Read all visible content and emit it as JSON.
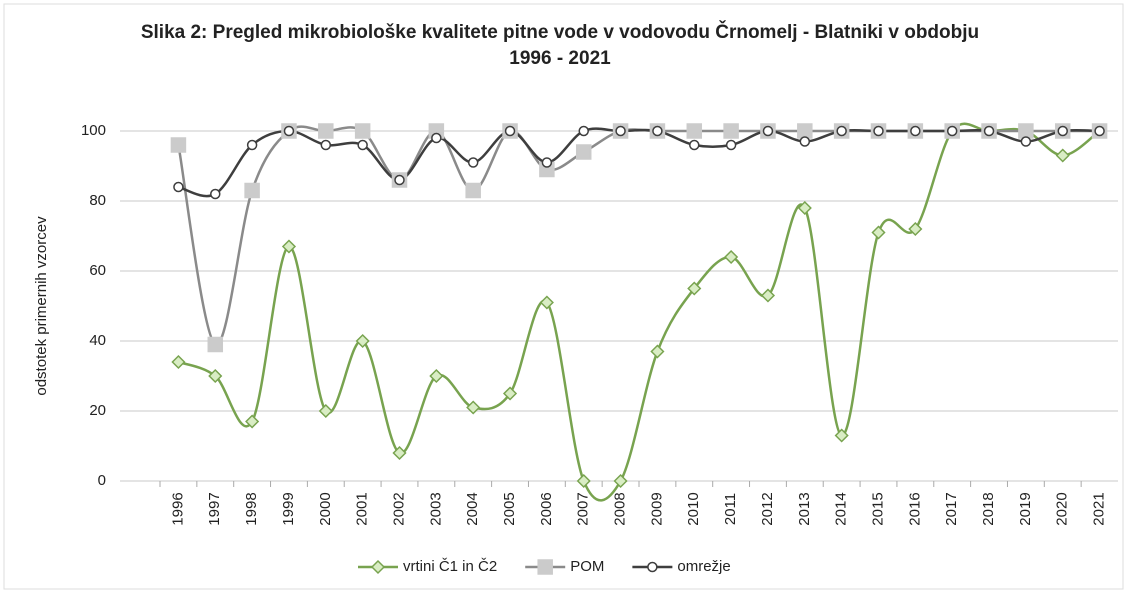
{
  "chart_data": {
    "type": "line",
    "title": "Slika 2: Pregled mikrobiološke kvalitete pitne vode v vodovodu Črnomelj - Blatniki v obdobju 1996 - 2021",
    "y_label": "odstotek primernih vzorcev",
    "categories": [
      "1996",
      "1997",
      "1998",
      "1999",
      "2000",
      "2001",
      "2002",
      "2003",
      "2004",
      "2005",
      "2006",
      "2007",
      "2008",
      "2009",
      "2010",
      "2011",
      "2012",
      "2013",
      "2014",
      "2015",
      "2016",
      "2017",
      "2018",
      "2019",
      "2020",
      "2021"
    ],
    "series": [
      {
        "name": "vrtini Č1 in Č2",
        "color": "#78a34f",
        "marker": "diamond",
        "marker_fill": "#d9edc4",
        "values": [
          34,
          30,
          17,
          67,
          20,
          40,
          8,
          30,
          21,
          25,
          51,
          0,
          0,
          37,
          55,
          64,
          53,
          78,
          13,
          71,
          72,
          100,
          100,
          100,
          93,
          100
        ]
      },
      {
        "name": "POM",
        "color": "#8a8a8a",
        "marker": "square",
        "marker_fill": "#cbcbcb",
        "values": [
          96,
          39,
          83,
          100,
          100,
          100,
          86,
          100,
          83,
          100,
          89,
          94,
          100,
          100,
          100,
          100,
          100,
          100,
          100,
          100,
          100,
          100,
          100,
          100,
          100,
          100
        ]
      },
      {
        "name": "omrežje",
        "color": "#3e3e3e",
        "marker": "circle",
        "marker_fill": "#ffffff",
        "values": [
          84,
          82,
          96,
          100,
          96,
          96,
          86,
          98,
          91,
          100,
          91,
          100,
          100,
          100,
          96,
          96,
          100,
          97,
          100,
          100,
          100,
          100,
          100,
          97,
          100,
          100
        ]
      }
    ],
    "ylim": [
      0,
      100
    ],
    "yticks": [
      0,
      20,
      40,
      60,
      80,
      100
    ],
    "grid": true,
    "smooth": true,
    "legend": "bottom"
  }
}
